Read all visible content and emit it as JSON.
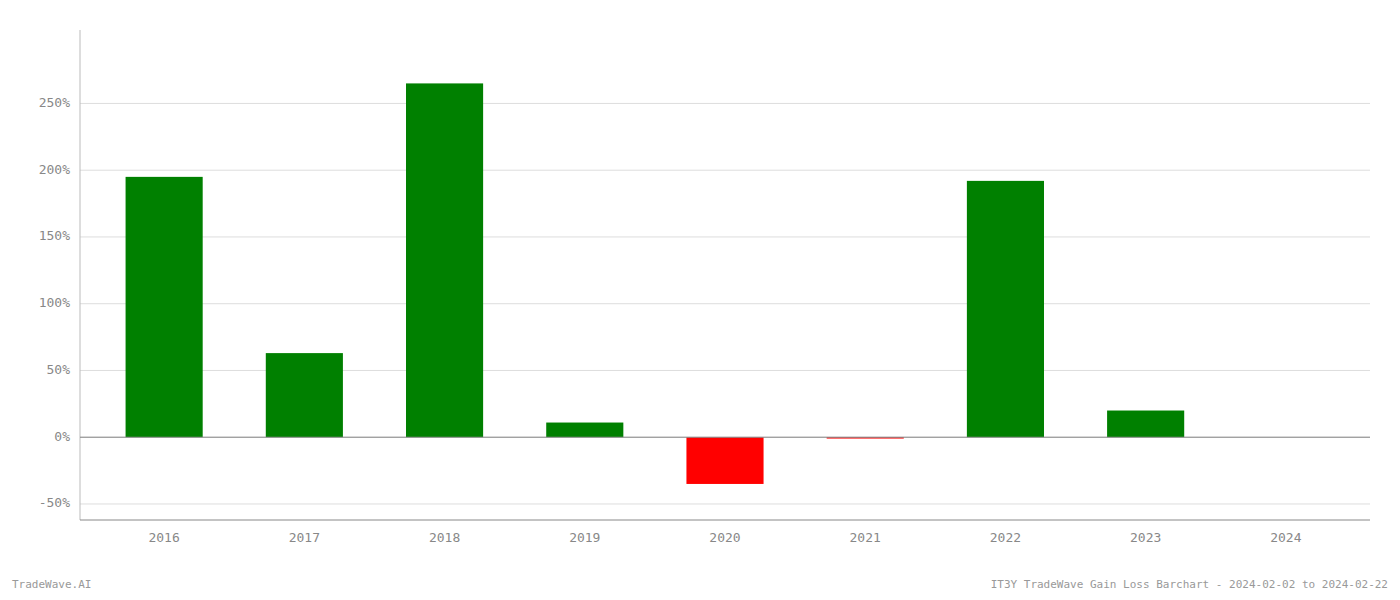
{
  "chart_data": {
    "type": "bar",
    "title": "IT3Y TradeWave Gain Loss Barchart - 2024-02-02 to 2024-02-22",
    "annotations": [
      "TradeWave.AI"
    ],
    "x": [
      2016,
      2017,
      2018,
      2019,
      2020,
      2021,
      2022,
      2023,
      2024
    ],
    "values": [
      1.95,
      0.63,
      2.65,
      0.11,
      -0.35,
      -0.01,
      1.92,
      0.2,
      null
    ],
    "colors": [
      "#008000",
      "#008000",
      "#008000",
      "#008000",
      "#ff0000",
      "#ff0000",
      "#008000",
      "#008000",
      null
    ],
    "xlim": [
      2015.4,
      2024.6
    ],
    "xticks": [
      2016,
      2017,
      2018,
      2019,
      2020,
      2021,
      2022,
      2023,
      2024
    ],
    "ylim": [
      -0.62,
      3.05
    ],
    "yticks": [
      {
        "value": -0.5,
        "label": "-50%"
      },
      {
        "value": 0.0,
        "label": "0%"
      },
      {
        "value": 0.5,
        "label": "50%"
      },
      {
        "value": 1.0,
        "label": "100%"
      },
      {
        "value": 1.5,
        "label": "150%"
      },
      {
        "value": 2.0,
        "label": "200%"
      },
      {
        "value": 2.5,
        "label": "250%"
      }
    ],
    "grid": true
  }
}
